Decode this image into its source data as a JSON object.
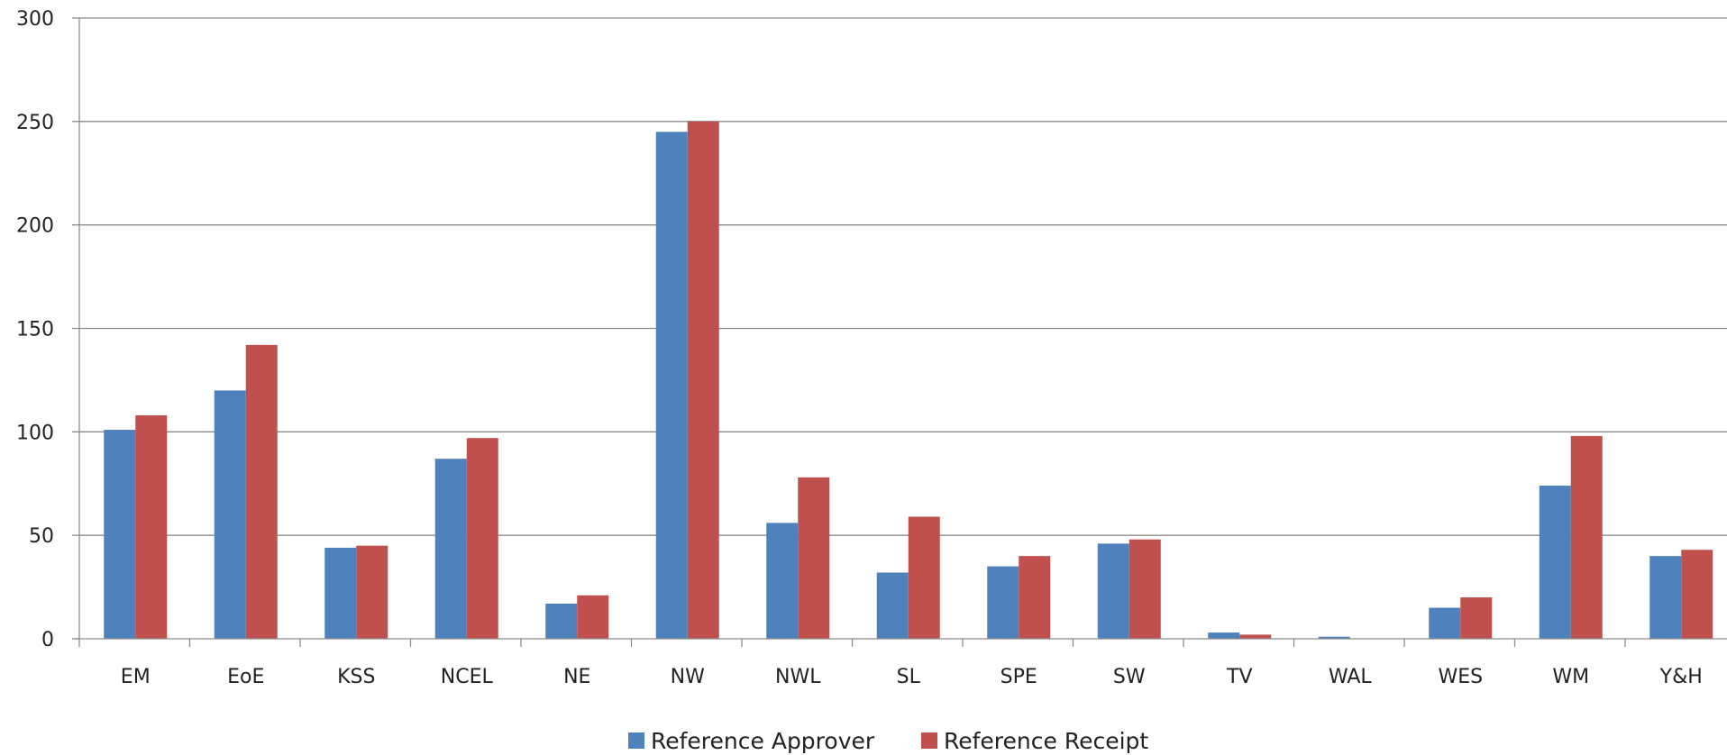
{
  "chart_data": {
    "type": "bar",
    "categories": [
      "EM",
      "EoE",
      "KSS",
      "NCEL",
      "NE",
      "NW",
      "NWL",
      "SL",
      "SPE",
      "SW",
      "TV",
      "WAL",
      "WES",
      "WM",
      "Y&H"
    ],
    "series": [
      {
        "name": "Reference Approver",
        "color": "#4F81BD",
        "values": [
          101,
          120,
          44,
          87,
          17,
          245,
          56,
          32,
          35,
          46,
          3,
          1,
          15,
          74,
          40
        ]
      },
      {
        "name": "Reference Receipt",
        "color": "#C0504D",
        "values": [
          108,
          142,
          45,
          97,
          21,
          250,
          78,
          59,
          40,
          48,
          2,
          0,
          20,
          98,
          43
        ]
      }
    ],
    "title": "",
    "xlabel": "",
    "ylabel": "",
    "ylim": [
      0,
      300
    ],
    "yticks": [
      0,
      50,
      100,
      150,
      200,
      250,
      300
    ],
    "grid": true,
    "legend": "bottom-center"
  }
}
